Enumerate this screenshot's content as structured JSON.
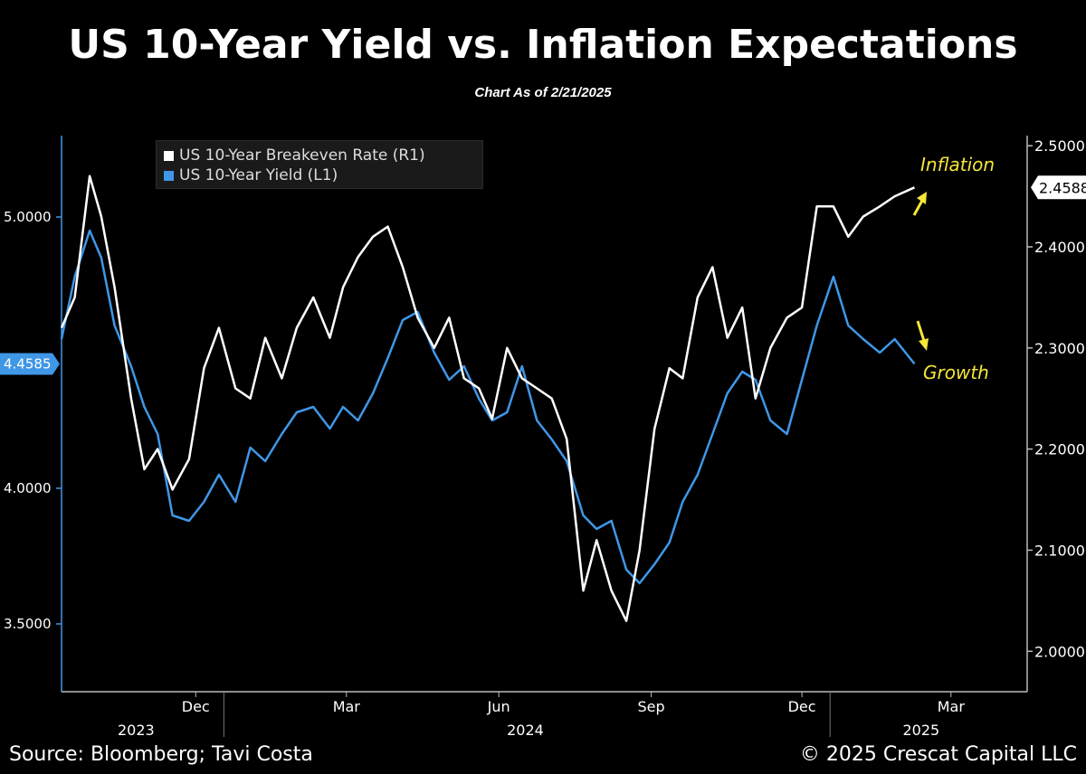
{
  "chart_data": {
    "type": "line",
    "title": "US 10-Year Yield vs. Inflation Expectations",
    "subtitle": "Chart As of 2/21/2025",
    "x_range": [
      "2023-09-25",
      "2025-04-30"
    ],
    "x_ticks": [
      "Dec",
      "Mar",
      "Jun",
      "Sep",
      "Dec",
      "Mar"
    ],
    "x_years": [
      "2023",
      "2024",
      "2025"
    ],
    "y_left": {
      "ticks": [
        "5.0000",
        "4.0000",
        "3.5000"
      ],
      "range": [
        3.25,
        5.3
      ],
      "last_value_label": "4.4585"
    },
    "y_right": {
      "ticks": [
        "2.5000",
        "2.4000",
        "2.3000",
        "2.2000",
        "2.1000",
        "2.0000"
      ],
      "range": [
        1.96,
        2.51
      ],
      "last_value_label": "2.4588"
    },
    "legend_placement": "top-left",
    "series": [
      {
        "name": "US 10-Year Breakeven Rate (R1)",
        "axis": "right",
        "color": "#ffffff",
        "x": [
          "2023-09-25",
          "2023-10-03",
          "2023-10-12",
          "2023-10-19",
          "2023-10-27",
          "2023-11-06",
          "2023-11-14",
          "2023-11-22",
          "2023-12-01",
          "2023-12-11",
          "2023-12-20",
          "2023-12-29",
          "2024-01-08",
          "2024-01-17",
          "2024-01-26",
          "2024-02-05",
          "2024-02-14",
          "2024-02-24",
          "2024-03-05",
          "2024-03-13",
          "2024-03-22",
          "2024-03-31",
          "2024-04-09",
          "2024-04-18",
          "2024-04-27",
          "2024-05-07",
          "2024-05-16",
          "2024-05-25",
          "2024-06-03",
          "2024-06-11",
          "2024-06-20",
          "2024-06-29",
          "2024-07-08",
          "2024-07-17",
          "2024-07-26",
          "2024-08-05",
          "2024-08-13",
          "2024-08-22",
          "2024-08-31",
          "2024-09-08",
          "2024-09-17",
          "2024-09-26",
          "2024-10-04",
          "2024-10-13",
          "2024-10-22",
          "2024-10-31",
          "2024-11-09",
          "2024-11-17",
          "2024-11-26",
          "2024-12-06",
          "2024-12-15",
          "2024-12-24",
          "2025-01-03",
          "2025-01-12",
          "2025-01-21",
          "2025-01-31",
          "2025-02-09",
          "2025-02-21"
        ],
        "values": [
          2.32,
          2.35,
          2.47,
          2.43,
          2.36,
          2.25,
          2.18,
          2.2,
          2.16,
          2.19,
          2.28,
          2.32,
          2.26,
          2.25,
          2.31,
          2.27,
          2.32,
          2.35,
          2.31,
          2.36,
          2.39,
          2.41,
          2.42,
          2.38,
          2.33,
          2.3,
          2.33,
          2.27,
          2.26,
          2.23,
          2.3,
          2.27,
          2.26,
          2.25,
          2.21,
          2.06,
          2.11,
          2.06,
          2.03,
          2.1,
          2.22,
          2.28,
          2.27,
          2.35,
          2.38,
          2.31,
          2.34,
          2.25,
          2.3,
          2.33,
          2.34,
          2.44,
          2.44,
          2.41,
          2.43,
          2.44,
          2.45,
          2.4588
        ]
      },
      {
        "name": "US 10-Year Yield (L1)",
        "axis": "left",
        "color": "#3f97e6",
        "x": [
          "2023-09-25",
          "2023-10-03",
          "2023-10-12",
          "2023-10-19",
          "2023-10-27",
          "2023-11-06",
          "2023-11-14",
          "2023-11-22",
          "2023-12-01",
          "2023-12-11",
          "2023-12-20",
          "2023-12-29",
          "2024-01-08",
          "2024-01-17",
          "2024-01-26",
          "2024-02-05",
          "2024-02-14",
          "2024-02-24",
          "2024-03-05",
          "2024-03-13",
          "2024-03-22",
          "2024-03-31",
          "2024-04-09",
          "2024-04-18",
          "2024-04-27",
          "2024-05-07",
          "2024-05-16",
          "2024-05-25",
          "2024-06-03",
          "2024-06-11",
          "2024-06-20",
          "2024-06-29",
          "2024-07-08",
          "2024-07-17",
          "2024-07-26",
          "2024-08-05",
          "2024-08-13",
          "2024-08-22",
          "2024-08-31",
          "2024-09-08",
          "2024-09-17",
          "2024-09-26",
          "2024-10-04",
          "2024-10-13",
          "2024-10-22",
          "2024-10-31",
          "2024-11-09",
          "2024-11-17",
          "2024-11-26",
          "2024-12-06",
          "2024-12-15",
          "2024-12-24",
          "2025-01-03",
          "2025-01-12",
          "2025-01-21",
          "2025-01-31",
          "2025-02-09",
          "2025-02-21"
        ],
        "values": [
          4.55,
          4.78,
          4.95,
          4.85,
          4.6,
          4.45,
          4.3,
          4.2,
          3.9,
          3.88,
          3.95,
          4.05,
          3.95,
          4.15,
          4.1,
          4.2,
          4.28,
          4.3,
          4.22,
          4.3,
          4.25,
          4.35,
          4.48,
          4.62,
          4.65,
          4.5,
          4.4,
          4.45,
          4.33,
          4.25,
          4.28,
          4.45,
          4.25,
          4.18,
          4.1,
          3.9,
          3.85,
          3.88,
          3.7,
          3.65,
          3.72,
          3.8,
          3.95,
          4.05,
          4.2,
          4.35,
          4.43,
          4.4,
          4.25,
          4.2,
          4.4,
          4.6,
          4.78,
          4.6,
          4.55,
          4.5,
          4.55,
          4.4585
        ]
      }
    ],
    "annotations": [
      {
        "text": "Inflation",
        "direction": "up",
        "color": "#f5e63a"
      },
      {
        "text": "Growth",
        "direction": "down",
        "color": "#f5e63a"
      }
    ]
  },
  "footer": {
    "source": "Source: Bloomberg; Tavi Costa",
    "copyright": "© 2025 Crescat Capital LLC"
  }
}
